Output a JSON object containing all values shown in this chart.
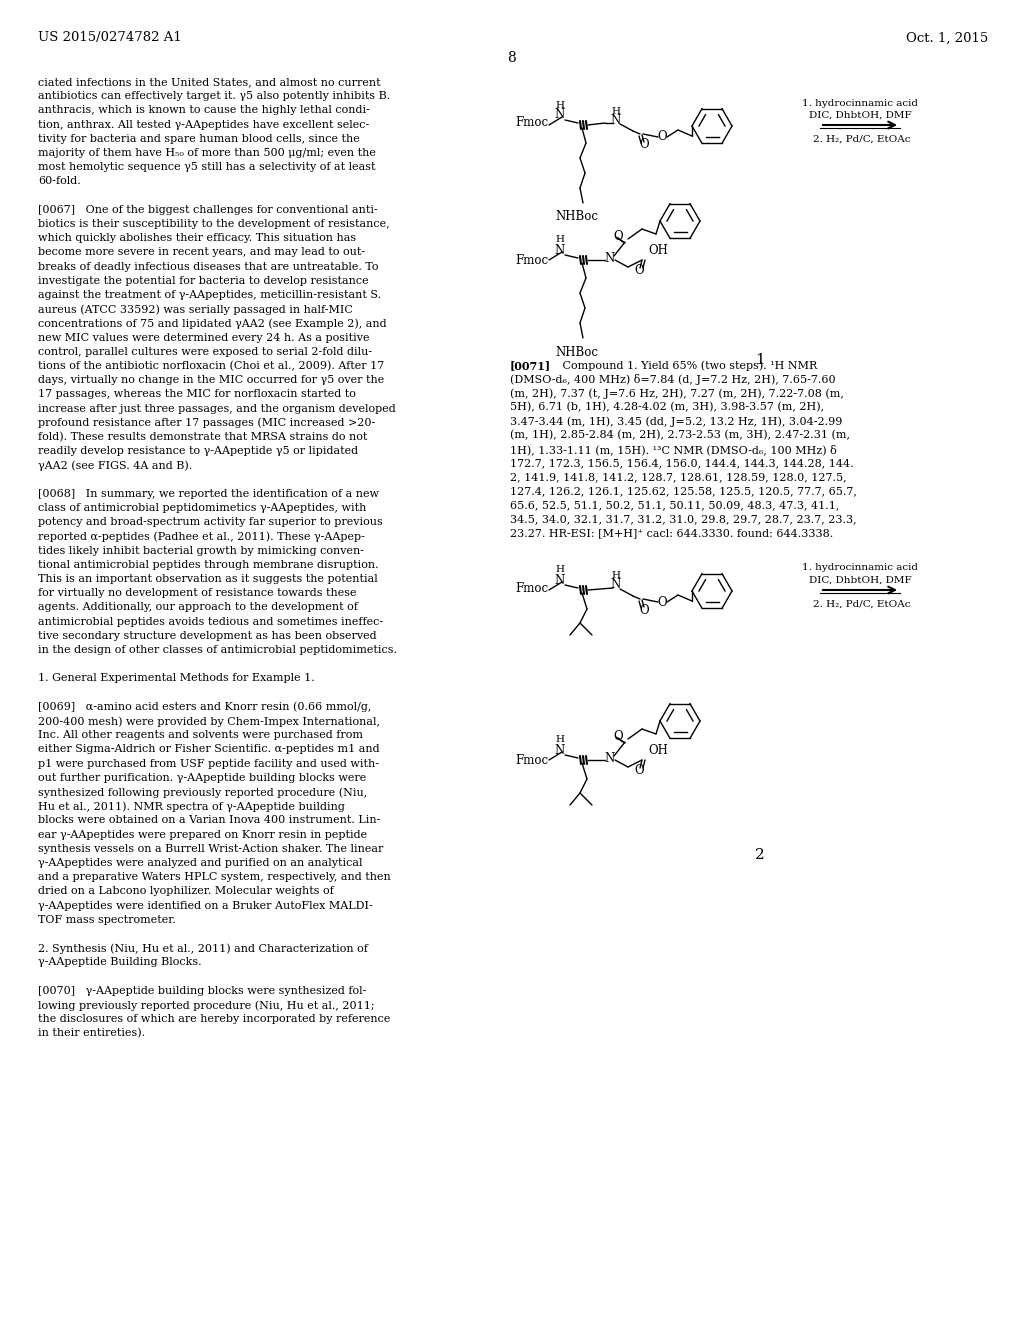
{
  "background_color": "#ffffff",
  "header_left": "US 2015/0274782 A1",
  "header_right": "Oct. 1, 2015",
  "page_number": "8",
  "left_col_lines": [
    "ciated infections in the United States, and almost no current",
    "antibiotics can effectively target it. γ5 also potently inhibits B.",
    "anthracis, which is known to cause the highly lethal condi-",
    "tion, anthrax. All tested γ-AApeptides have excellent selec-",
    "tivity for bacteria and spare human blood cells, since the",
    "majority of them have H₅₀ of more than 500 μg/ml; even the",
    "most hemolytic sequence γ5 still has a selectivity of at least",
    "60-fold.",
    "",
    "[0067]   One of the biggest challenges for conventional anti-",
    "biotics is their susceptibility to the development of resistance,",
    "which quickly abolishes their efficacy. This situation has",
    "become more severe in recent years, and may lead to out-",
    "breaks of deadly infectious diseases that are untreatable. To",
    "investigate the potential for bacteria to develop resistance",
    "against the treatment of γ-AApeptides, meticillin-resistant S.",
    "aureus (ATCC 33592) was serially passaged in half-MIC",
    "concentrations of 75 and lipidated γAA2 (see Example 2), and",
    "new MIC values were determined every 24 h. As a positive",
    "control, parallel cultures were exposed to serial 2-fold dilu-",
    "tions of the antibiotic norfloxacin (Choi et al., 2009). After 17",
    "days, virtually no change in the MIC occurred for γ5 over the",
    "17 passages, whereas the MIC for norfloxacin started to",
    "increase after just three passages, and the organism developed",
    "profound resistance after 17 passages (MIC increased >20-",
    "fold). These results demonstrate that MRSA strains do not",
    "readily develop resistance to γ-AApeptide γ5 or lipidated",
    "γAA2 (see FIGS. 4A and B).",
    "",
    "[0068]   In summary, we reported the identification of a new",
    "class of antimicrobial peptidomimetics γ-AApeptides, with",
    "potency and broad-spectrum activity far superior to previous",
    "reported α-peptides (Padhee et al., 2011). These γ-AApep-",
    "tides likely inhibit bacterial growth by mimicking conven-",
    "tional antimicrobial peptides through membrane disruption.",
    "This is an important observation as it suggests the potential",
    "for virtually no development of resistance towards these",
    "agents. Additionally, our approach to the development of",
    "antimicrobial peptides avoids tedious and sometimes ineffec-",
    "tive secondary structure development as has been observed",
    "in the design of other classes of antimicrobial peptidomimetics.",
    "",
    "1. General Experimental Methods for Example 1.",
    "",
    "[0069]   α-amino acid esters and Knorr resin (0.66 mmol/g,",
    "200-400 mesh) were provided by Chem-Impex International,",
    "Inc. All other reagents and solvents were purchased from",
    "either Sigma-Aldrich or Fisher Scientific. α-peptides m1 and",
    "p1 were purchased from USF peptide facility and used with-",
    "out further purification. γ-AApeptide building blocks were",
    "synthesized following previously reported procedure (Niu,",
    "Hu et al., 2011). NMR spectra of γ-AApeptide building",
    "blocks were obtained on a Varian Inova 400 instrument. Lin-",
    "ear γ-AApeptides were prepared on Knorr resin in peptide",
    "synthesis vessels on a Burrell Wrist-Action shaker. The linear",
    "γ-AApeptides were analyzed and purified on an analytical",
    "and a preparative Waters HPLC system, respectively, and then",
    "dried on a Labcono lyophilizer. Molecular weights of",
    "γ-AApeptides were identified on a Bruker AutoFlex MALDI-",
    "TOF mass spectrometer.",
    "",
    "2. Synthesis (Niu, Hu et al., 2011) and Characterization of",
    "γ-AApeptide Building Blocks.",
    "",
    "[0070]   γ-AApeptide building blocks were synthesized fol-",
    "lowing previously reported procedure (Niu, Hu et al., 2011;",
    "the disclosures of which are hereby incorporated by reference",
    "in their entireties)."
  ],
  "nmr_text_lines": [
    "[0071]   Compound 1. Yield 65% (two steps). ¹H NMR",
    "(DMSO-d₆, 400 MHz) δ=7.84 (d, J=7.2 Hz, 2H), 7.65-7.60",
    "(m, 2H), 7.37 (t, J=7.6 Hz, 2H), 7.27 (m, 2H), 7.22-7.08 (m,",
    "5H), 6.71 (b, 1H), 4.28-4.02 (m, 3H), 3.98-3.57 (m, 2H),",
    "3.47-3.44 (m, 1H), 3.45 (dd, J=5.2, 13.2 Hz, 1H), 3.04-2.99",
    "(m, 1H), 2.85-2.84 (m, 2H), 2.73-2.53 (m, 3H), 2.47-2.31 (m,",
    "1H), 1.33-1.11 (m, 15H). ¹³C NMR (DMSO-d₆, 100 MHz) δ",
    "172.7, 172.3, 156.5, 156.4, 156.0, 144.4, 144.3, 144.28, 144.",
    "2, 141.9, 141.8, 141.2, 128.7, 128.61, 128.59, 128.0, 127.5,",
    "127.4, 126.2, 126.1, 125.62, 125.58, 125.5, 120.5, 77.7, 65.7,",
    "65.6, 52.5, 51.1, 50.2, 51.1, 50.11, 50.09, 48.3, 47.3, 41.1,",
    "34.5, 34.0, 32.1, 31.7, 31.2, 31.0, 29.8, 29.7, 28.7, 23.7, 23.3,",
    "23.27. HR-ESI: [M+H]⁺ cacl: 644.3330. found: 644.3338."
  ],
  "arrow_label_1a": "1. hydrocinnamic acid",
  "arrow_label_1b": "DIC, DhbtOH, DMF",
  "arrow_label_2": "2. H₂, Pd/C, EtOAc",
  "compound_label_1": "1",
  "compound_label_2": "2"
}
